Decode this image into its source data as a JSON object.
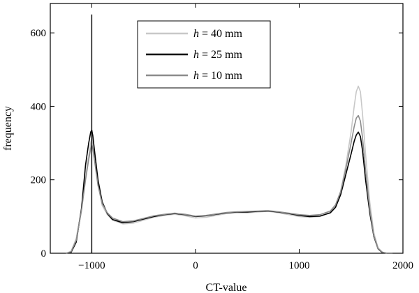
{
  "chart_data": {
    "type": "line",
    "title": "",
    "xlabel": "CT-value",
    "ylabel": "frequency",
    "xlim": [
      -1400,
      2000
    ],
    "ylim": [
      0,
      680
    ],
    "x_ticks": [
      -1000,
      0,
      1000,
      2000
    ],
    "x_tick_labels": [
      "−1000",
      "0",
      "1000",
      "2000"
    ],
    "y_ticks": [
      0,
      200,
      400,
      600
    ],
    "y_tick_labels": [
      "0",
      "200",
      "400",
      "600"
    ],
    "grid": false,
    "legend_position": "top-center",
    "series": [
      {
        "name": "h = 40 mm",
        "legend_var": "h",
        "legend_rest": " = 40 mm",
        "color": "#c8c8c8",
        "x": [
          -1250,
          -1200,
          -1150,
          -1100,
          -1060,
          -1030,
          -1010,
          -1000,
          -990,
          -970,
          -940,
          -900,
          -850,
          -800,
          -700,
          -600,
          -500,
          -400,
          -300,
          -200,
          -100,
          0,
          100,
          200,
          300,
          400,
          500,
          600,
          700,
          800,
          900,
          1000,
          1100,
          1200,
          1300,
          1350,
          1400,
          1450,
          1500,
          1530,
          1550,
          1570,
          1590,
          1610,
          1640,
          1680,
          1720,
          1760,
          1800,
          1850,
          1900
        ],
        "y": [
          0,
          5,
          40,
          120,
          210,
          265,
          300,
          312,
          300,
          255,
          190,
          130,
          105,
          90,
          80,
          82,
          90,
          98,
          103,
          106,
          102,
          96,
          98,
          103,
          108,
          110,
          110,
          112,
          114,
          110,
          105,
          100,
          98,
          100,
          112,
          130,
          170,
          240,
          330,
          400,
          440,
          455,
          440,
          380,
          270,
          140,
          55,
          15,
          3,
          0,
          0
        ]
      },
      {
        "name": "h = 25 mm",
        "legend_var": "h",
        "legend_rest": " = 25 mm",
        "color": "#000000",
        "x": [
          -1250,
          -1200,
          -1150,
          -1100,
          -1060,
          -1030,
          -1010,
          -1000,
          -990,
          -970,
          -940,
          -900,
          -850,
          -800,
          -700,
          -600,
          -500,
          -400,
          -300,
          -200,
          -100,
          0,
          100,
          200,
          300,
          400,
          500,
          600,
          700,
          800,
          900,
          1000,
          1100,
          1200,
          1300,
          1350,
          1400,
          1450,
          1500,
          1530,
          1550,
          1570,
          1590,
          1610,
          1640,
          1680,
          1720,
          1760,
          1800,
          1850,
          1900
        ],
        "y": [
          0,
          2,
          30,
          120,
          240,
          300,
          330,
          335,
          320,
          270,
          200,
          140,
          108,
          92,
          83,
          86,
          93,
          100,
          105,
          108,
          105,
          100,
          102,
          106,
          110,
          112,
          112,
          114,
          115,
          112,
          108,
          103,
          100,
          101,
          110,
          125,
          160,
          215,
          270,
          305,
          322,
          330,
          318,
          280,
          200,
          110,
          45,
          12,
          2,
          0,
          0
        ]
      },
      {
        "name": "h = 10 mm",
        "legend_var": "h",
        "legend_rest": " = 10 mm",
        "color": "#8c8c8c",
        "x": [
          -1250,
          -1200,
          -1150,
          -1100,
          -1060,
          -1030,
          -1010,
          -1000,
          -990,
          -970,
          -940,
          -900,
          -850,
          -800,
          -700,
          -600,
          -500,
          -400,
          -300,
          -200,
          -100,
          0,
          100,
          200,
          300,
          400,
          500,
          600,
          700,
          800,
          900,
          1000,
          1100,
          1200,
          1300,
          1350,
          1400,
          1450,
          1500,
          1530,
          1550,
          1570,
          1590,
          1610,
          1640,
          1680,
          1720,
          1760,
          1800,
          1850,
          1900
        ],
        "y": [
          0,
          4,
          35,
          115,
          200,
          255,
          285,
          295,
          285,
          245,
          185,
          135,
          110,
          96,
          86,
          88,
          95,
          102,
          106,
          109,
          106,
          101,
          103,
          107,
          111,
          113,
          114,
          115,
          116,
          113,
          109,
          105,
          103,
          105,
          115,
          132,
          168,
          230,
          300,
          345,
          368,
          375,
          360,
          315,
          225,
          120,
          48,
          13,
          3,
          0,
          0
        ]
      }
    ],
    "annotations": [
      {
        "kind": "spike",
        "series": "h = 25 mm",
        "x": -1000,
        "y": 650
      }
    ]
  }
}
